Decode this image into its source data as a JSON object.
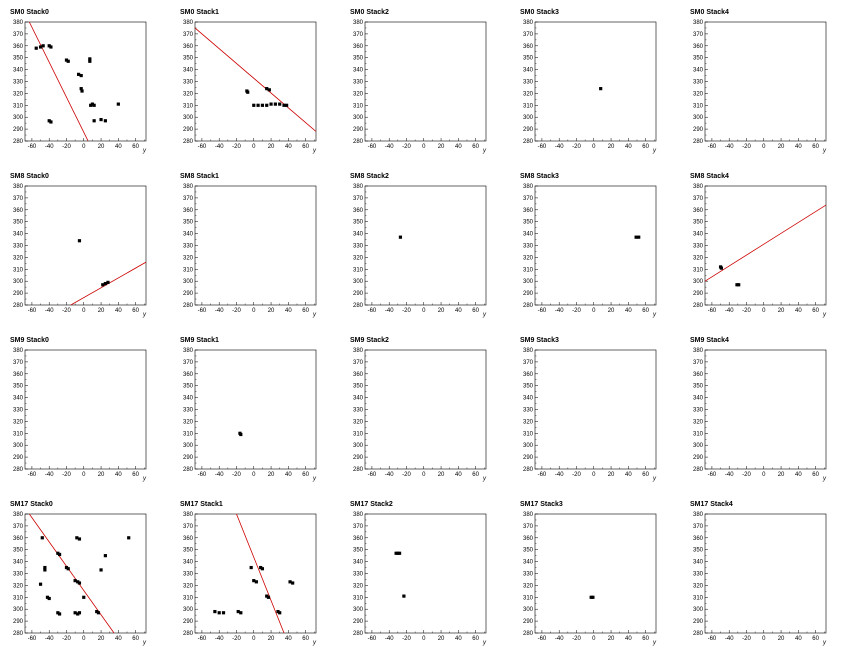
{
  "figure": {
    "x_range": [
      -68,
      72
    ],
    "y_range": [
      280,
      380
    ],
    "x_ticks": [
      -60,
      -40,
      -20,
      0,
      20,
      40,
      60
    ],
    "y_ticks": [
      280,
      290,
      300,
      310,
      320,
      330,
      340,
      350,
      360,
      370,
      380
    ],
    "x_axis_label": "y",
    "hit_color": "#000000",
    "fit_line_color": "#cc0000"
  },
  "chart_data": [
    {
      "type": "scatter",
      "title": "SM0 Stack0",
      "xlim": [
        -68,
        72
      ],
      "ylim": [
        280,
        380
      ],
      "points": [
        [
          -55,
          358
        ],
        [
          -50,
          359
        ],
        [
          -47,
          360
        ],
        [
          -40,
          360
        ],
        [
          -38,
          359
        ],
        [
          -20,
          348
        ],
        [
          -18,
          347
        ],
        [
          -6,
          336
        ],
        [
          -3,
          335
        ],
        [
          -3,
          324
        ],
        [
          -2,
          322
        ],
        [
          7,
          349
        ],
        [
          7,
          347
        ],
        [
          8,
          310
        ],
        [
          10,
          311
        ],
        [
          12,
          310
        ],
        [
          12,
          297
        ],
        [
          20,
          298
        ],
        [
          25,
          297
        ],
        [
          40,
          311
        ],
        [
          -40,
          297
        ],
        [
          -38,
          296
        ]
      ],
      "fit_line": [
        [
          -63,
          380
        ],
        [
          5,
          280
        ]
      ]
    },
    {
      "type": "scatter",
      "title": "SM0 Stack1",
      "xlim": [
        -68,
        72
      ],
      "ylim": [
        280,
        380
      ],
      "points": [
        [
          -8,
          322
        ],
        [
          -7,
          321
        ],
        [
          0,
          310
        ],
        [
          5,
          310
        ],
        [
          10,
          310
        ],
        [
          15,
          310
        ],
        [
          20,
          311
        ],
        [
          25,
          311
        ],
        [
          30,
          311
        ],
        [
          35,
          310
        ],
        [
          38,
          310
        ],
        [
          15,
          324
        ],
        [
          18,
          323
        ]
      ],
      "fit_line": [
        [
          -68,
          375
        ],
        [
          72,
          288
        ]
      ]
    },
    {
      "type": "scatter",
      "title": "SM0 Stack2",
      "xlim": [
        -68,
        72
      ],
      "ylim": [
        280,
        380
      ],
      "points": [],
      "fit_line": null
    },
    {
      "type": "scatter",
      "title": "SM0 Stack3",
      "xlim": [
        -68,
        72
      ],
      "ylim": [
        280,
        380
      ],
      "points": [
        [
          8,
          324
        ]
      ],
      "fit_line": null
    },
    {
      "type": "scatter",
      "title": "SM0 Stack4",
      "xlim": [
        -68,
        72
      ],
      "ylim": [
        280,
        380
      ],
      "points": [],
      "fit_line": null
    },
    {
      "type": "scatter",
      "title": "SM8 Stack0",
      "xlim": [
        -68,
        72
      ],
      "ylim": [
        280,
        380
      ],
      "points": [
        [
          -5,
          334
        ],
        [
          22,
          297
        ],
        [
          25,
          298
        ],
        [
          28,
          299
        ]
      ],
      "fit_line": [
        [
          -15,
          280
        ],
        [
          72,
          316
        ]
      ]
    },
    {
      "type": "scatter",
      "title": "SM8 Stack1",
      "xlim": [
        -68,
        72
      ],
      "ylim": [
        280,
        380
      ],
      "points": [],
      "fit_line": null
    },
    {
      "type": "scatter",
      "title": "SM8 Stack2",
      "xlim": [
        -68,
        72
      ],
      "ylim": [
        280,
        380
      ],
      "points": [
        [
          -27,
          337
        ]
      ],
      "fit_line": null
    },
    {
      "type": "scatter",
      "title": "SM8 Stack3",
      "xlim": [
        -68,
        72
      ],
      "ylim": [
        280,
        380
      ],
      "points": [
        [
          49,
          337
        ],
        [
          52,
          337
        ]
      ],
      "fit_line": null
    },
    {
      "type": "scatter",
      "title": "SM8 Stack4",
      "xlim": [
        -68,
        72
      ],
      "ylim": [
        280,
        380
      ],
      "points": [
        [
          -50,
          312
        ],
        [
          -49,
          311
        ],
        [
          -31,
          297
        ],
        [
          -29,
          297
        ]
      ],
      "fit_line": [
        [
          -68,
          300
        ],
        [
          72,
          364
        ]
      ]
    },
    {
      "type": "scatter",
      "title": "SM9 Stack0",
      "xlim": [
        -68,
        72
      ],
      "ylim": [
        280,
        380
      ],
      "points": [],
      "fit_line": null
    },
    {
      "type": "scatter",
      "title": "SM9 Stack1",
      "xlim": [
        -68,
        72
      ],
      "ylim": [
        280,
        380
      ],
      "points": [
        [
          -16,
          310
        ],
        [
          -15,
          309
        ]
      ],
      "fit_line": null
    },
    {
      "type": "scatter",
      "title": "SM9 Stack2",
      "xlim": [
        -68,
        72
      ],
      "ylim": [
        280,
        380
      ],
      "points": [],
      "fit_line": null
    },
    {
      "type": "scatter",
      "title": "SM9 Stack3",
      "xlim": [
        -68,
        72
      ],
      "ylim": [
        280,
        380
      ],
      "points": [],
      "fit_line": null
    },
    {
      "type": "scatter",
      "title": "SM9 Stack4",
      "xlim": [
        -68,
        72
      ],
      "ylim": [
        280,
        380
      ],
      "points": [],
      "fit_line": null
    },
    {
      "type": "scatter",
      "title": "SM17 Stack0",
      "xlim": [
        -68,
        72
      ],
      "ylim": [
        280,
        380
      ],
      "points": [
        [
          -48,
          360
        ],
        [
          -45,
          335
        ],
        [
          -45,
          333
        ],
        [
          -50,
          321
        ],
        [
          -42,
          310
        ],
        [
          -40,
          309
        ],
        [
          -30,
          347
        ],
        [
          -28,
          346
        ],
        [
          -20,
          335
        ],
        [
          -18,
          334
        ],
        [
          -10,
          324
        ],
        [
          -7,
          323
        ],
        [
          -5,
          322
        ],
        [
          -8,
          360
        ],
        [
          -5,
          359
        ],
        [
          0,
          310
        ],
        [
          15,
          298
        ],
        [
          17,
          297
        ],
        [
          20,
          333
        ],
        [
          25,
          345
        ],
        [
          52,
          360
        ],
        [
          -30,
          297
        ],
        [
          -28,
          296
        ],
        [
          -10,
          297
        ],
        [
          -7,
          296
        ],
        [
          -5,
          297
        ]
      ],
      "fit_line": [
        [
          -63,
          380
        ],
        [
          35,
          280
        ]
      ]
    },
    {
      "type": "scatter",
      "title": "SM17 Stack1",
      "xlim": [
        -68,
        72
      ],
      "ylim": [
        280,
        380
      ],
      "points": [
        [
          -45,
          298
        ],
        [
          -40,
          297
        ],
        [
          -35,
          297
        ],
        [
          -18,
          298
        ],
        [
          -15,
          297
        ],
        [
          -3,
          335
        ],
        [
          0,
          324
        ],
        [
          3,
          323
        ],
        [
          8,
          335
        ],
        [
          10,
          334
        ],
        [
          15,
          311
        ],
        [
          17,
          310
        ],
        [
          28,
          298
        ],
        [
          30,
          297
        ],
        [
          42,
          323
        ],
        [
          45,
          322
        ]
      ],
      "fit_line": [
        [
          -20,
          380
        ],
        [
          35,
          280
        ]
      ]
    },
    {
      "type": "scatter",
      "title": "SM17 Stack2",
      "xlim": [
        -68,
        72
      ],
      "ylim": [
        280,
        380
      ],
      "points": [
        [
          -32,
          347
        ],
        [
          -30,
          347
        ],
        [
          -28,
          347
        ],
        [
          -23,
          311
        ]
      ],
      "fit_line": null
    },
    {
      "type": "scatter",
      "title": "SM17 Stack3",
      "xlim": [
        -68,
        72
      ],
      "ylim": [
        280,
        380
      ],
      "points": [
        [
          -3,
          310
        ],
        [
          -1,
          310
        ]
      ],
      "fit_line": null
    },
    {
      "type": "scatter",
      "title": "SM17 Stack4",
      "xlim": [
        -68,
        72
      ],
      "ylim": [
        280,
        380
      ],
      "points": [],
      "fit_line": null
    }
  ]
}
